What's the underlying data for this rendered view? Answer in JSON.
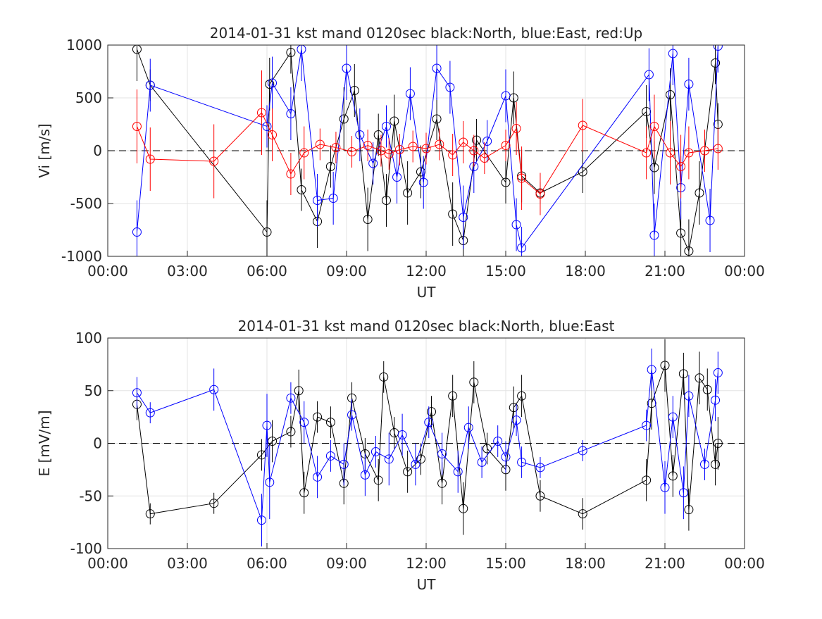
{
  "chart_data": [
    {
      "type": "errorline",
      "title": "2014-01-31 kst mand 0120sec black:North, blue:East, red:Up",
      "xlabel": "UT",
      "ylabel": "Vi [m/s]",
      "xlim": [
        0,
        24
      ],
      "xticks": [
        {
          "value": 0,
          "label": "00:00"
        },
        {
          "value": 3,
          "label": "03:00"
        },
        {
          "value": 6,
          "label": "06:00"
        },
        {
          "value": 9,
          "label": "09:00"
        },
        {
          "value": 12,
          "label": "12:00"
        },
        {
          "value": 15,
          "label": "15:00"
        },
        {
          "value": 18,
          "label": "18:00"
        },
        {
          "value": 21,
          "label": "21:00"
        },
        {
          "value": 24,
          "label": "00:00"
        }
      ],
      "ylim": [
        -1000,
        1000
      ],
      "yticks": [
        -1000,
        -500,
        0,
        500,
        1000
      ],
      "grid": true,
      "reference_line": 0,
      "series": [
        {
          "color": "#000000",
          "x": [
            1.1,
            1.6,
            6.0,
            6.1,
            6.9,
            7.3,
            7.9,
            8.4,
            8.9,
            9.3,
            9.8,
            10.2,
            10.5,
            10.8,
            11.3,
            11.8,
            12.4,
            13.0,
            13.4,
            13.9,
            15.0,
            15.3,
            15.6,
            16.3,
            17.9,
            20.3,
            20.6,
            21.2,
            21.6,
            21.9,
            22.3,
            22.9,
            23.0
          ],
          "values": [
            960,
            620,
            -770,
            630,
            930,
            -370,
            -670,
            -150,
            300,
            570,
            -650,
            150,
            -470,
            280,
            -400,
            -200,
            300,
            -600,
            -850,
            100,
            -300,
            500,
            -240,
            -400,
            -200,
            370,
            -160,
            530,
            -780,
            -950,
            -400,
            830,
            250
          ],
          "errors": [
            300,
            150,
            300,
            250,
            200,
            200,
            250,
            200,
            300,
            250,
            300,
            200,
            250,
            250,
            300,
            250,
            200,
            300,
            300,
            200,
            200,
            250,
            250,
            100,
            200,
            250,
            250,
            250,
            300,
            300,
            300,
            200,
            200
          ]
        },
        {
          "color": "#0000ff",
          "x": [
            1.1,
            1.6,
            6.0,
            6.2,
            6.9,
            7.3,
            7.9,
            8.5,
            9.0,
            9.5,
            10.0,
            10.5,
            10.9,
            11.4,
            11.9,
            12.4,
            12.9,
            13.4,
            13.8,
            14.3,
            15.0,
            15.4,
            15.6,
            20.4,
            20.6,
            21.3,
            21.6,
            21.9,
            22.7,
            23.0
          ],
          "values": [
            -770,
            620,
            230,
            640,
            350,
            960,
            -470,
            -450,
            780,
            150,
            -120,
            230,
            -250,
            540,
            -300,
            780,
            600,
            -630,
            -150,
            90,
            520,
            -700,
            -920,
            720,
            -800,
            920,
            -350,
            630,
            -660,
            990
          ],
          "errors": [
            300,
            250,
            200,
            250,
            250,
            300,
            250,
            250,
            300,
            250,
            200,
            200,
            250,
            250,
            250,
            300,
            250,
            300,
            250,
            200,
            250,
            250,
            200,
            250,
            300,
            300,
            300,
            250,
            300,
            250
          ]
        },
        {
          "color": "#ff0000",
          "x": [
            1.1,
            1.6,
            4.0,
            5.8,
            6.2,
            6.9,
            7.4,
            8.0,
            8.6,
            9.2,
            9.8,
            10.3,
            10.6,
            11.0,
            11.5,
            12.0,
            12.5,
            13.0,
            13.4,
            13.8,
            14.2,
            15.0,
            15.4,
            15.6,
            16.3,
            17.9,
            20.3,
            20.6,
            21.2,
            21.6,
            21.9,
            22.5,
            23.0
          ],
          "values": [
            230,
            -80,
            -100,
            360,
            150,
            -220,
            -20,
            60,
            30,
            -10,
            50,
            0,
            -30,
            10,
            40,
            20,
            60,
            -40,
            80,
            0,
            -70,
            50,
            210,
            -260,
            -410,
            240,
            -20,
            230,
            -20,
            -150,
            -20,
            0,
            20
          ],
          "errors": [
            350,
            300,
            350,
            400,
            250,
            200,
            250,
            150,
            150,
            150,
            150,
            150,
            150,
            150,
            150,
            150,
            150,
            200,
            200,
            150,
            150,
            150,
            250,
            300,
            200,
            250,
            250,
            300,
            300,
            300,
            250,
            200,
            200
          ]
        }
      ]
    },
    {
      "type": "errorline",
      "title": "2014-01-31 kst mand 0120sec black:North, blue:East",
      "xlabel": "UT",
      "ylabel": "E [mV/m]",
      "xlim": [
        0,
        24
      ],
      "xticks": [
        {
          "value": 0,
          "label": "00:00"
        },
        {
          "value": 3,
          "label": "03:00"
        },
        {
          "value": 6,
          "label": "06:00"
        },
        {
          "value": 9,
          "label": "09:00"
        },
        {
          "value": 12,
          "label": "12:00"
        },
        {
          "value": 15,
          "label": "15:00"
        },
        {
          "value": 18,
          "label": "18:00"
        },
        {
          "value": 21,
          "label": "21:00"
        },
        {
          "value": 24,
          "label": "00:00"
        }
      ],
      "ylim": [
        -100,
        100
      ],
      "yticks": [
        -100,
        -50,
        0,
        50,
        100
      ],
      "grid": true,
      "reference_line": 0,
      "series": [
        {
          "color": "#000000",
          "x": [
            1.1,
            1.6,
            4.0,
            5.8,
            6.2,
            6.9,
            7.2,
            7.4,
            7.9,
            8.4,
            8.9,
            9.2,
            9.7,
            10.2,
            10.4,
            10.8,
            11.3,
            11.8,
            12.2,
            12.6,
            13.0,
            13.4,
            13.8,
            14.3,
            15.0,
            15.3,
            15.6,
            16.3,
            17.9,
            20.3,
            20.5,
            21.0,
            21.3,
            21.7,
            21.9,
            22.3,
            22.6,
            22.9,
            23.0
          ],
          "values": [
            37,
            -67,
            -57,
            -11,
            2,
            11,
            50,
            -47,
            25,
            20,
            -38,
            43,
            -10,
            -35,
            63,
            10,
            -27,
            -15,
            30,
            -38,
            45,
            -62,
            58,
            -5,
            -25,
            34,
            45,
            -50,
            -67,
            -35,
            38,
            74,
            -31,
            66,
            -63,
            62,
            51,
            -20,
            0
          ],
          "errors": [
            15,
            10,
            10,
            15,
            20,
            15,
            20,
            20,
            15,
            15,
            20,
            15,
            15,
            20,
            15,
            15,
            20,
            15,
            15,
            20,
            20,
            25,
            20,
            15,
            20,
            20,
            20,
            15,
            15,
            20,
            25,
            25,
            20,
            20,
            20,
            25,
            20,
            20,
            25
          ]
        },
        {
          "color": "#0000ff",
          "x": [
            1.1,
            1.6,
            4.0,
            5.8,
            6.0,
            6.1,
            6.9,
            7.4,
            7.9,
            8.4,
            8.9,
            9.2,
            9.7,
            10.1,
            10.6,
            11.1,
            11.6,
            12.1,
            12.6,
            13.2,
            13.6,
            14.1,
            14.7,
            15.0,
            15.4,
            15.6,
            16.3,
            17.9,
            20.3,
            20.5,
            21.0,
            21.3,
            21.7,
            21.9,
            22.5,
            22.9,
            23.0
          ],
          "values": [
            48,
            29,
            51,
            -73,
            17,
            -37,
            43,
            20,
            -32,
            -12,
            -20,
            27,
            -30,
            -8,
            -15,
            8,
            -20,
            20,
            -10,
            -27,
            15,
            -18,
            2,
            -13,
            22,
            -18,
            -23,
            -7,
            17,
            70,
            -42,
            25,
            -47,
            45,
            -20,
            41,
            67
          ],
          "errors": [
            15,
            10,
            20,
            25,
            30,
            35,
            15,
            20,
            20,
            15,
            20,
            15,
            20,
            15,
            25,
            20,
            20,
            15,
            20,
            20,
            20,
            15,
            15,
            15,
            15,
            15,
            10,
            10,
            15,
            20,
            25,
            20,
            25,
            20,
            15,
            20,
            20
          ]
        }
      ]
    }
  ]
}
